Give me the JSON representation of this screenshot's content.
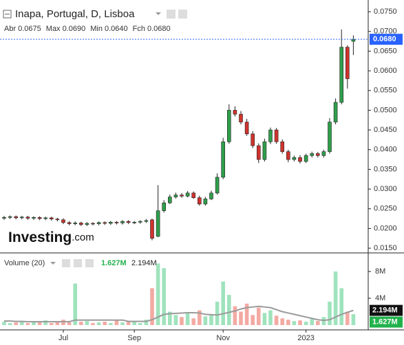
{
  "header": {
    "title": "Inapa, Portugal, D, Lisboa",
    "ohlc": [
      {
        "label": "Abr",
        "value": "0.0675"
      },
      {
        "label": "Max",
        "value": "0.0690"
      },
      {
        "label": "Min",
        "value": "0.0640"
      },
      {
        "label": "Fch",
        "value": "0.0680"
      }
    ]
  },
  "watermark": {
    "brand": "Investing",
    "suffix": ".com"
  },
  "chart_data": {
    "type": "candlestick",
    "categories": [
      null,
      null,
      null,
      null,
      null,
      null,
      null,
      null,
      null,
      null,
      "Jul",
      null,
      null,
      null,
      null,
      null,
      null,
      null,
      null,
      null,
      null,
      null,
      "Sep",
      null,
      null,
      null,
      null,
      null,
      null,
      null,
      null,
      null,
      null,
      null,
      null,
      null,
      null,
      "Nov",
      null,
      null,
      null,
      null,
      null,
      null,
      null,
      null,
      null,
      null,
      null,
      null,
      null,
      "2023",
      null,
      null,
      null,
      null,
      null,
      null,
      null,
      null
    ],
    "open": [
      0.0226,
      0.0228,
      0.023,
      0.0227,
      0.0229,
      0.0226,
      0.0228,
      0.0225,
      0.0227,
      0.0224,
      0.0222,
      0.0215,
      0.0212,
      0.0214,
      0.021,
      0.0213,
      0.0212,
      0.0215,
      0.0213,
      0.0216,
      0.0214,
      0.0218,
      0.0215,
      0.0216,
      0.0218,
      0.0222,
      0.018,
      0.0245,
      0.0265,
      0.028,
      0.0285,
      0.0282,
      0.029,
      0.0278,
      0.0262,
      0.0275,
      0.029,
      0.033,
      0.042,
      0.05,
      0.049,
      0.047,
      0.044,
      0.041,
      0.0375,
      0.042,
      0.045,
      0.042,
      0.0395,
      0.0375,
      0.038,
      0.037,
      0.0385,
      0.039,
      0.0385,
      0.0395,
      0.047,
      0.052,
      0.066,
      0.0675
    ],
    "high": [
      0.0232,
      0.0233,
      0.0233,
      0.0232,
      0.0232,
      0.0231,
      0.0231,
      0.023,
      0.023,
      0.0227,
      0.0226,
      0.0219,
      0.0218,
      0.0217,
      0.0216,
      0.0216,
      0.0218,
      0.0218,
      0.0219,
      0.0219,
      0.0221,
      0.0221,
      0.0219,
      0.0221,
      0.0224,
      0.0225,
      0.031,
      0.0272,
      0.0286,
      0.0291,
      0.029,
      0.0295,
      0.0294,
      0.0283,
      0.028,
      0.0296,
      0.034,
      0.043,
      0.0515,
      0.051,
      0.0498,
      0.0478,
      0.0447,
      0.0416,
      0.0428,
      0.0456,
      0.0455,
      0.0426,
      0.04,
      0.0385,
      0.0386,
      0.039,
      0.0395,
      0.0394,
      0.04,
      0.048,
      0.053,
      0.0705,
      0.0665,
      0.069
    ],
    "low": [
      0.0222,
      0.0224,
      0.0223,
      0.0223,
      0.0222,
      0.0222,
      0.0221,
      0.0221,
      0.022,
      0.0218,
      0.0211,
      0.0208,
      0.0208,
      0.0206,
      0.0206,
      0.0208,
      0.0208,
      0.0209,
      0.0209,
      0.021,
      0.021,
      0.0211,
      0.0211,
      0.0212,
      0.0214,
      0.017,
      0.0178,
      0.024,
      0.0262,
      0.0276,
      0.0278,
      0.0279,
      0.0275,
      0.0258,
      0.0258,
      0.0272,
      0.0286,
      0.0325,
      0.0415,
      0.0484,
      0.0464,
      0.0435,
      0.0404,
      0.0366,
      0.037,
      0.0414,
      0.0415,
      0.039,
      0.0368,
      0.037,
      0.0365,
      0.0366,
      0.038,
      0.038,
      0.038,
      0.039,
      0.0464,
      0.0515,
      0.0555,
      0.064
    ],
    "close": [
      0.0228,
      0.023,
      0.0227,
      0.0229,
      0.0226,
      0.0228,
      0.0225,
      0.0227,
      0.0224,
      0.0222,
      0.0215,
      0.0212,
      0.0214,
      0.021,
      0.0213,
      0.0212,
      0.0215,
      0.0213,
      0.0216,
      0.0214,
      0.0218,
      0.0215,
      0.0216,
      0.0218,
      0.022,
      0.0175,
      0.0245,
      0.0265,
      0.028,
      0.0285,
      0.0282,
      0.029,
      0.0278,
      0.0262,
      0.0275,
      0.029,
      0.033,
      0.042,
      0.05,
      0.049,
      0.047,
      0.044,
      0.041,
      0.0375,
      0.042,
      0.045,
      0.042,
      0.0395,
      0.0375,
      0.038,
      0.037,
      0.0385,
      0.039,
      0.0385,
      0.0395,
      0.047,
      0.052,
      0.066,
      0.058,
      0.068
    ],
    "up_color": "#2f9e4a",
    "down_color": "#d0332e",
    "last_color": "#2962ff",
    "ylim": [
      0.0138,
      0.0764
    ],
    "yticks": [
      {
        "value": 0.015,
        "label": "0.0150"
      },
      {
        "value": 0.02,
        "label": "0.0200"
      },
      {
        "value": 0.025,
        "label": "0.0250"
      },
      {
        "value": 0.03,
        "label": "0.0300"
      },
      {
        "value": 0.035,
        "label": "0.0350"
      },
      {
        "value": 0.04,
        "label": "0.0400"
      },
      {
        "value": 0.045,
        "label": "0.0450"
      },
      {
        "value": 0.05,
        "label": "0.0500"
      },
      {
        "value": 0.055,
        "label": "0.0550"
      },
      {
        "value": 0.06,
        "label": "0.0600"
      },
      {
        "value": 0.065,
        "label": "0.0650"
      },
      {
        "value": 0.07,
        "label": "0.0700"
      },
      {
        "value": 0.075,
        "label": "0.0750"
      }
    ],
    "volume": {
      "name": "Volume (20)",
      "values": [
        0.5,
        0.3,
        0.4,
        0.6,
        0.3,
        0.5,
        0.4,
        0.7,
        0.3,
        0.5,
        0.8,
        0.4,
        6.2,
        0.5,
        0.6,
        0.3,
        0.4,
        0.5,
        0.3,
        0.7,
        0.4,
        0.5,
        0.6,
        0.3,
        0.8,
        5.5,
        9.2,
        8.5,
        2.0,
        1.5,
        1.2,
        1.8,
        1.0,
        2.2,
        1.3,
        1.6,
        3.5,
        6.5,
        4.5,
        2.8,
        2.0,
        3.2,
        1.5,
        2.6,
        1.8,
        2.2,
        1.4,
        1.0,
        0.8,
        0.6,
        0.7,
        0.5,
        0.9,
        0.6,
        1.2,
        3.5,
        8.0,
        5.5,
        2.0,
        1.627
      ],
      "ma": [
        0.6,
        0.6,
        0.55,
        0.55,
        0.5,
        0.5,
        0.5,
        0.5,
        0.5,
        0.5,
        0.5,
        0.5,
        0.75,
        0.75,
        0.75,
        0.75,
        0.75,
        0.75,
        0.75,
        0.75,
        0.75,
        0.55,
        0.55,
        0.55,
        0.55,
        0.8,
        1.2,
        1.6,
        1.7,
        1.75,
        1.8,
        1.85,
        1.85,
        1.8,
        1.6,
        1.55,
        1.5,
        1.7,
        1.9,
        2.1,
        2.4,
        2.6,
        2.7,
        2.8,
        2.7,
        2.6,
        2.3,
        2.0,
        1.8,
        1.6,
        1.4,
        1.2,
        1.0,
        0.8,
        0.7,
        0.8,
        1.2,
        1.6,
        1.9,
        2.194
      ],
      "last_label": "1.627M",
      "ma_last_label": "2.194M",
      "up_color": "#9fe3bd",
      "down_color": "#f3aaa3",
      "ma_color": "#9a9a9a",
      "ma_box_color": "#111111",
      "last_box_color": "#22b24c",
      "ylim": [
        0,
        10.26
      ],
      "yticks": [
        {
          "value": 4,
          "label": "4M"
        },
        {
          "value": 8,
          "label": "8M"
        }
      ]
    }
  }
}
